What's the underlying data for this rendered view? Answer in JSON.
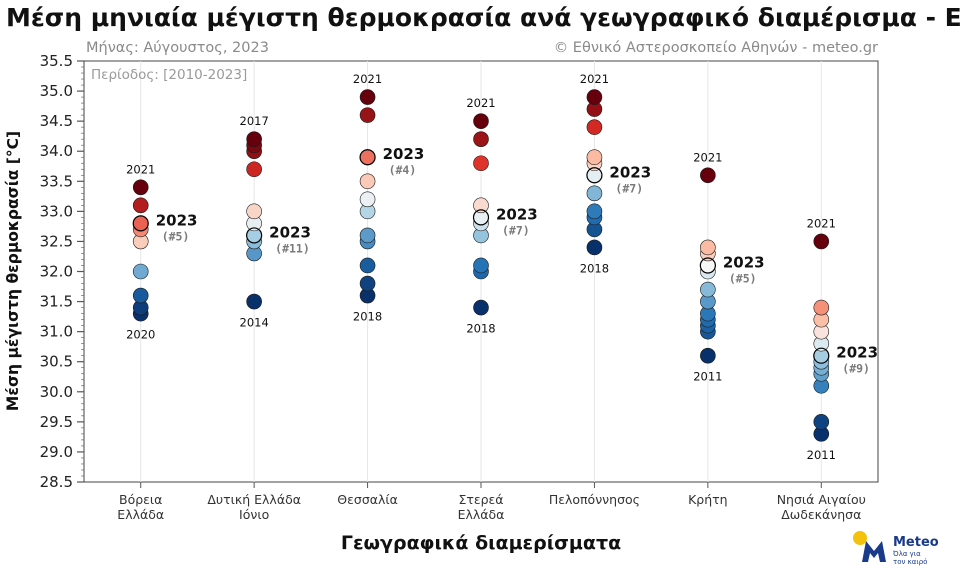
{
  "header": {
    "title": "Μέση μηνιαία μέγιστη θερμοκρασία ανά γεωγραφικό διαμέρισμα - Ελλάδα",
    "month_label": "Μήνας: Αύγουστος, 2023",
    "credit": "© Εθνικό Αστεροσκοπείο Αθηνών - meteo.gr",
    "period": "Περίοδος: [2010-2023]"
  },
  "logo": {
    "name": "Meteo",
    "tagline_1": "Όλα για",
    "tagline_2": "τον καιρό"
  },
  "chart_data": {
    "type": "scatter",
    "title": "Μέση μηνιαία μέγιστη θερμοκρασία ανά γεωγραφικό διαμέρισμα - Ελλάδα",
    "xlabel": "Γεωγραφικά διαμερίσματα",
    "ylabel": "Μέση μέγιστη θερμοκρασία [°C]",
    "ylim": [
      28.5,
      35.5
    ],
    "yticks": [
      "28.5",
      "29.0",
      "29.5",
      "30.0",
      "30.5",
      "31.0",
      "31.5",
      "32.0",
      "32.5",
      "33.0",
      "33.5",
      "34.0",
      "34.5",
      "35.0",
      "35.5"
    ],
    "grid": "vertical",
    "color_scale": {
      "cold": "#08306b",
      "neutral": "#f7f7f7",
      "warm": "#67000d"
    },
    "regions": [
      {
        "label": [
          "Βόρεια",
          "Ελλάδα"
        ],
        "values": [
          33.4,
          33.1,
          32.8,
          32.7,
          32.5,
          32.0,
          31.6,
          31.4,
          31.3
        ],
        "highlight": {
          "value": 32.8,
          "label": "2023",
          "rank": "(#5)"
        },
        "max": {
          "value": 33.4,
          "year": "2021"
        },
        "min": {
          "value": 31.3,
          "year": "2020"
        }
      },
      {
        "label": [
          "Δυτική Ελλάδα",
          "Ιόνιο"
        ],
        "values": [
          34.2,
          34.1,
          34.0,
          33.7,
          33.0,
          32.8,
          32.6,
          32.5,
          32.3,
          31.5
        ],
        "highlight": {
          "value": 32.6,
          "label": "2023",
          "rank": "(#11)"
        },
        "max": {
          "value": 34.2,
          "year": "2017"
        },
        "min": {
          "value": 31.5,
          "year": "2014"
        }
      },
      {
        "label": [
          "Θεσσαλία"
        ],
        "values": [
          34.9,
          34.6,
          33.9,
          33.5,
          33.2,
          33.0,
          32.6,
          32.5,
          32.1,
          31.8,
          31.6
        ],
        "highlight": {
          "value": 33.9,
          "label": "2023",
          "rank": "(#4)"
        },
        "max": {
          "value": 34.9,
          "year": "2021"
        },
        "min": {
          "value": 31.6,
          "year": "2018"
        }
      },
      {
        "label": [
          "Στερεά",
          "Ελλάδα"
        ],
        "values": [
          34.5,
          34.2,
          33.8,
          33.1,
          32.9,
          32.8,
          32.6,
          32.1,
          32.0,
          31.4
        ],
        "highlight": {
          "value": 32.9,
          "label": "2023",
          "rank": "(#7)"
        },
        "max": {
          "value": 34.5,
          "year": "2021"
        },
        "min": {
          "value": 31.4,
          "year": "2018"
        }
      },
      {
        "label": [
          "Πελοπόννησος"
        ],
        "values": [
          34.9,
          34.7,
          34.4,
          33.9,
          33.8,
          33.6,
          33.3,
          33.0,
          32.9,
          32.7,
          32.4
        ],
        "highlight": {
          "value": 33.6,
          "label": "2023",
          "rank": "(#7)"
        },
        "max": {
          "value": 34.9,
          "year": "2021"
        },
        "min": {
          "value": 32.4,
          "year": "2018"
        }
      },
      {
        "label": [
          "Κρήτη"
        ],
        "values": [
          33.6,
          32.4,
          32.3,
          32.1,
          32.0,
          31.7,
          31.5,
          31.3,
          31.2,
          31.1,
          31.0,
          30.6
        ],
        "highlight": {
          "value": 32.1,
          "label": "2023",
          "rank": "(#5)"
        },
        "max": {
          "value": 33.6,
          "year": "2021"
        },
        "min": {
          "value": 30.6,
          "year": "2011"
        }
      },
      {
        "label": [
          "Νησιά Αιγαίου",
          "Δωδεκάνησα"
        ],
        "values": [
          32.5,
          31.4,
          31.2,
          31.0,
          30.8,
          30.6,
          30.5,
          30.4,
          30.3,
          30.1,
          29.5,
          29.3
        ],
        "highlight": {
          "value": 30.6,
          "label": "2023",
          "rank": "(#9)"
        },
        "max": {
          "value": 32.5,
          "year": "2021"
        },
        "min": {
          "value": 29.3,
          "year": "2011"
        }
      }
    ]
  }
}
